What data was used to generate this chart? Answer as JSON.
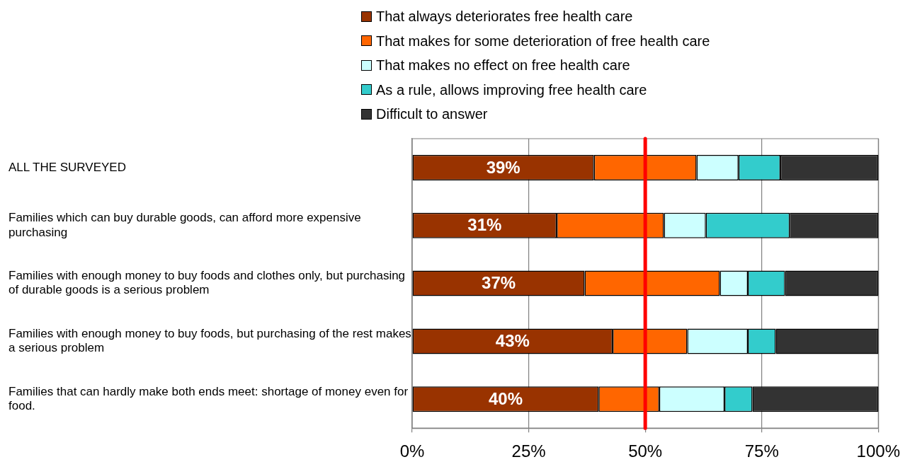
{
  "chart_data": {
    "type": "bar",
    "orientation": "horizontal",
    "stacked": true,
    "categories": [
      "ALL THE SURVEYED",
      "Families which can buy durable goods, can afford more expensive purchasing",
      "Families with enough money to buy foods and clothes only, but purchasing of durable goods is a serious problem",
      "Families with enough money to buy foods, but purchasing of the rest makes a serious problem",
      "Families that can hardly make both ends meet: shortage of money even for food."
    ],
    "series": [
      {
        "name": "That always deteriorates free health care",
        "color": "#993300",
        "values": [
          39,
          31,
          37,
          43,
          40
        ],
        "value_labels": [
          "39%",
          "31%",
          "37%",
          "43%",
          "40%"
        ]
      },
      {
        "name": "That makes for some deterioration of free health care",
        "color": "#ff6600",
        "values": [
          22,
          23,
          29,
          16,
          13
        ]
      },
      {
        "name": "That makes no effect on free health care",
        "color": "#ccffff",
        "values": [
          9,
          9,
          6,
          13,
          14
        ]
      },
      {
        "name": "As a rule, allows improving free health care",
        "color": "#33cccc",
        "values": [
          9,
          18,
          8,
          6,
          6
        ]
      },
      {
        "name": "Difficult to answer",
        "color": "#333333",
        "values": [
          21,
          19,
          20,
          22,
          27
        ]
      }
    ],
    "xlim": [
      0,
      100
    ],
    "xticks": [
      {
        "value": 0,
        "label": "0%"
      },
      {
        "value": 25,
        "label": "25%"
      },
      {
        "value": 50,
        "label": "50%"
      },
      {
        "value": 75,
        "label": "75%"
      },
      {
        "value": 100,
        "label": "100%"
      }
    ],
    "grid": "x",
    "legend": "top",
    "ref_lines": [
      {
        "axis": "x",
        "value": 50,
        "color": "#ff0000"
      }
    ]
  }
}
